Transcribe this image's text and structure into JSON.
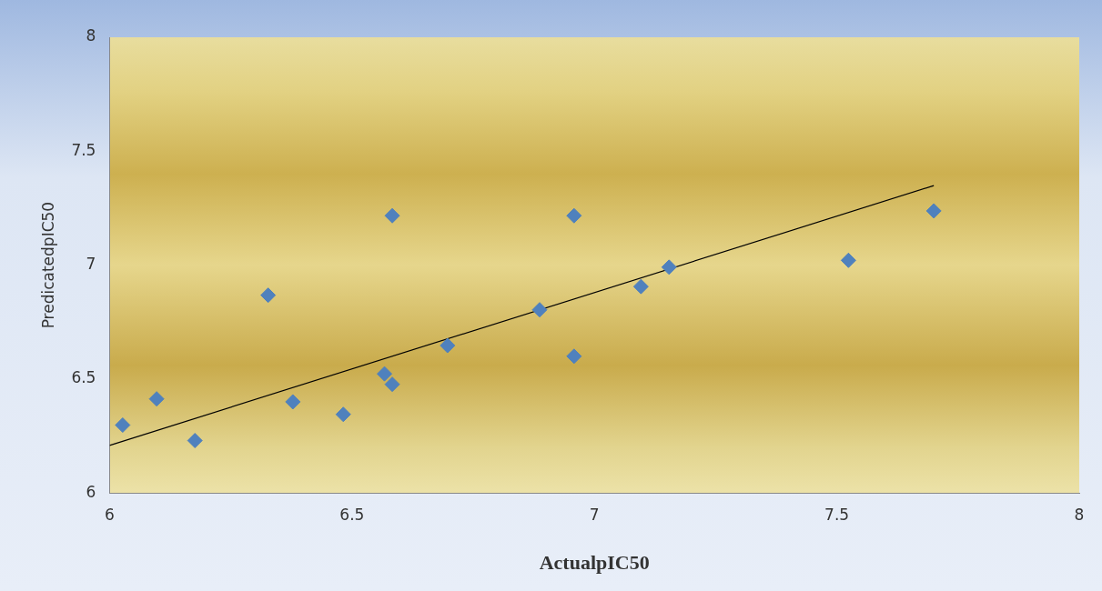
{
  "chart_data": {
    "type": "scatter",
    "xlabel": "ActualpIC50",
    "ylabel": "PredicatedpIC50",
    "xlim": [
      6,
      8
    ],
    "ylim": [
      6,
      8
    ],
    "xticks": [
      6,
      6.5,
      7,
      7.5,
      8
    ],
    "yticks": [
      6,
      6.5,
      7,
      7.5,
      8
    ],
    "grid": false,
    "legend": false,
    "series": [
      {
        "marker": "diamond",
        "color": "#4f81bd",
        "x": [
          6.027,
          6.097,
          6.176,
          6.327,
          6.378,
          6.482,
          6.567,
          6.583,
          6.583,
          6.697,
          6.887,
          6.958,
          6.958,
          7.096,
          7.154,
          7.524,
          7.7
        ],
        "values": [
          6.298,
          6.413,
          6.23,
          6.868,
          6.4,
          6.345,
          6.523,
          6.477,
          7.217,
          6.647,
          6.804,
          6.6,
          7.217,
          6.906,
          6.991,
          7.021,
          7.238
        ]
      },
      {
        "type": "line",
        "marker": "none",
        "color": "#000000",
        "x": [
          6,
          7.7
        ],
        "values": [
          6.209,
          7.349
        ]
      }
    ]
  }
}
